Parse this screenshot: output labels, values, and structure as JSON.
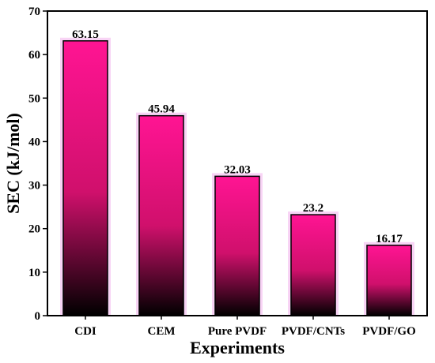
{
  "chart_data": {
    "type": "bar",
    "categories": [
      "CDI",
      "CEM",
      "Pure PVDF",
      "PVDF/CNTs",
      "PVDF/GO"
    ],
    "values": [
      63.15,
      45.94,
      32.03,
      23.2,
      16.17
    ],
    "data_labels": [
      "63.15",
      "45.94",
      "32.03",
      "23.2",
      "16.17"
    ],
    "xlabel": "Experiments",
    "ylabel": "SEC (kJ/mol)",
    "ylim": [
      0,
      70
    ],
    "yticks": [
      "0",
      "10",
      "20",
      "30",
      "40",
      "50",
      "60",
      "70"
    ],
    "grid": false,
    "legend": "none",
    "colors": {
      "bar_top": "#ff1493",
      "bar_mid": "#d0106c",
      "bar_bottom": "#000000",
      "glow": "#f0a0e8",
      "axis": "#000000"
    }
  }
}
